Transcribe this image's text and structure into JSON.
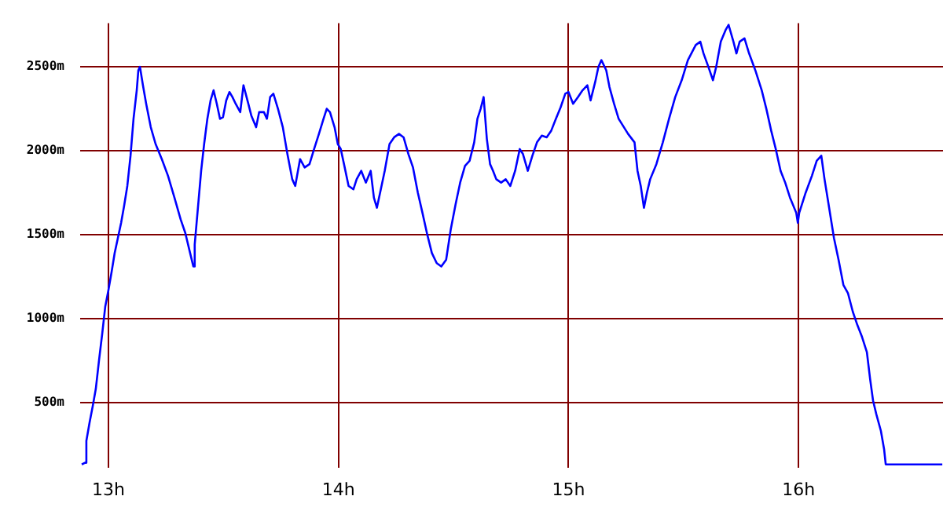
{
  "chart_data": {
    "type": "line",
    "grid": true,
    "legend": false,
    "marker": "none",
    "line_style": "solid",
    "xlim": [
      12.877,
      16.628
    ],
    "ylim": [
      110,
      2760
    ],
    "xticks": [
      {
        "value": 13,
        "label": "13h"
      },
      {
        "value": 14,
        "label": "14h"
      },
      {
        "value": 15,
        "label": "15h"
      },
      {
        "value": 16,
        "label": "16h"
      }
    ],
    "yticks": [
      {
        "value": 500,
        "label": "500m"
      },
      {
        "value": 1000,
        "label": "1000m"
      },
      {
        "value": 1500,
        "label": "1500m"
      },
      {
        "value": 2000,
        "label": "2000m"
      },
      {
        "value": 2500,
        "label": "2500m"
      }
    ],
    "series": [
      {
        "color": "#0000ff",
        "x": [
          12.884,
          12.898,
          12.904,
          12.918,
          12.932,
          12.945,
          12.959,
          12.973,
          12.986,
          13.0,
          13.014,
          13.027,
          13.041,
          13.055,
          13.068,
          13.082,
          13.096,
          13.109,
          13.123,
          13.13,
          13.137,
          13.15,
          13.164,
          13.184,
          13.205,
          13.232,
          13.259,
          13.287,
          13.314,
          13.334,
          13.355,
          13.369,
          13.375,
          13.389,
          13.403,
          13.416,
          13.43,
          13.444,
          13.457,
          13.471,
          13.485,
          13.498,
          13.512,
          13.526,
          13.539,
          13.553,
          13.573,
          13.587,
          13.608,
          13.621,
          13.642,
          13.655,
          13.676,
          13.689,
          13.703,
          13.717,
          13.737,
          13.758,
          13.778,
          13.799,
          13.812,
          13.833,
          13.853,
          13.874,
          13.894,
          13.915,
          13.935,
          13.949,
          13.963,
          13.983,
          13.997,
          14.01,
          14.024,
          14.044,
          14.065,
          14.079,
          14.099,
          14.119,
          14.14,
          14.154,
          14.167,
          14.181,
          14.201,
          14.222,
          14.242,
          14.263,
          14.283,
          14.304,
          14.324,
          14.345,
          14.365,
          14.386,
          14.406,
          14.427,
          14.447,
          14.468,
          14.488,
          14.509,
          14.529,
          14.55,
          14.57,
          14.59,
          14.604,
          14.618,
          14.631,
          14.645,
          14.659,
          14.672,
          14.686,
          14.707,
          14.727,
          14.747,
          14.768,
          14.788,
          14.802,
          14.823,
          14.843,
          14.863,
          14.884,
          14.905,
          14.925,
          14.945,
          14.966,
          14.986,
          15.0,
          15.02,
          15.041,
          15.061,
          15.082,
          15.096,
          15.116,
          15.13,
          15.143,
          15.164,
          15.178,
          15.198,
          15.218,
          15.259,
          15.287,
          15.3,
          15.314,
          15.328,
          15.341,
          15.355,
          15.382,
          15.41,
          15.437,
          15.464,
          15.492,
          15.519,
          15.553,
          15.573,
          15.587,
          15.608,
          15.628,
          15.642,
          15.662,
          15.683,
          15.696,
          15.717,
          15.73,
          15.744,
          15.765,
          15.785,
          15.812,
          15.84,
          15.86,
          15.881,
          15.901,
          15.922,
          15.942,
          15.963,
          15.99,
          15.997,
          16.003,
          16.031,
          16.058,
          16.079,
          16.099,
          16.113,
          16.133,
          16.154,
          16.174,
          16.195,
          16.215,
          16.236,
          16.256,
          16.276,
          16.297,
          16.311,
          16.324,
          16.338,
          16.358,
          16.372,
          16.379,
          16.393,
          16.488,
          16.625
        ],
        "values": [
          130,
          140,
          270,
          380,
          480,
          580,
          750,
          910,
          1070,
          1170,
          1280,
          1390,
          1480,
          1570,
          1670,
          1790,
          1970,
          2190,
          2360,
          2480,
          2500,
          2390,
          2280,
          2140,
          2040,
          1950,
          1850,
          1720,
          1590,
          1510,
          1390,
          1310,
          1440,
          1660,
          1880,
          2040,
          2190,
          2300,
          2360,
          2280,
          2190,
          2200,
          2300,
          2350,
          2320,
          2280,
          2230,
          2390,
          2280,
          2210,
          2140,
          2230,
          2230,
          2190,
          2320,
          2340,
          2250,
          2140,
          1980,
          1830,
          1790,
          1950,
          1900,
          1920,
          2010,
          2100,
          2190,
          2250,
          2230,
          2140,
          2040,
          2010,
          1920,
          1790,
          1770,
          1830,
          1880,
          1810,
          1880,
          1720,
          1660,
          1750,
          1880,
          2040,
          2080,
          2100,
          2080,
          1980,
          1900,
          1750,
          1630,
          1500,
          1390,
          1330,
          1310,
          1350,
          1530,
          1680,
          1810,
          1910,
          1940,
          2050,
          2190,
          2250,
          2320,
          2070,
          1920,
          1880,
          1830,
          1810,
          1830,
          1790,
          1880,
          2010,
          1980,
          1880,
          1970,
          2050,
          2090,
          2080,
          2120,
          2190,
          2260,
          2340,
          2350,
          2280,
          2320,
          2360,
          2390,
          2300,
          2410,
          2500,
          2540,
          2480,
          2380,
          2280,
          2190,
          2100,
          2050,
          1880,
          1790,
          1660,
          1750,
          1830,
          1920,
          2050,
          2190,
          2320,
          2420,
          2540,
          2630,
          2650,
          2580,
          2500,
          2420,
          2500,
          2650,
          2720,
          2750,
          2650,
          2580,
          2650,
          2670,
          2580,
          2480,
          2360,
          2250,
          2120,
          2010,
          1880,
          1810,
          1720,
          1630,
          1570,
          1630,
          1750,
          1850,
          1940,
          1970,
          1830,
          1660,
          1480,
          1350,
          1200,
          1150,
          1040,
          960,
          890,
          800,
          640,
          510,
          430,
          330,
          220,
          130,
          130,
          130,
          130
        ]
      }
    ]
  }
}
